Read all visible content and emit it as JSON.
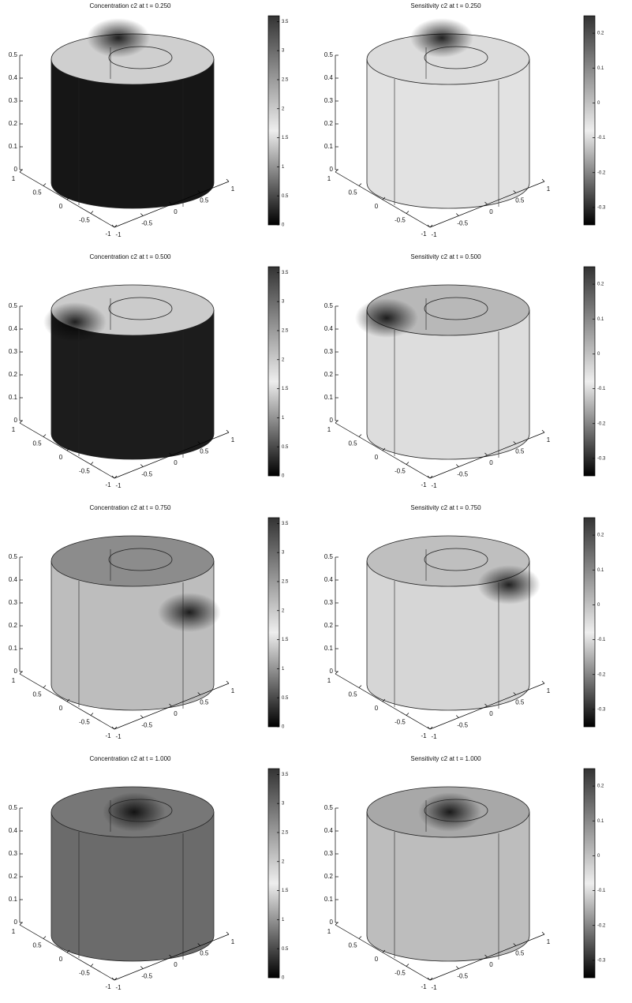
{
  "chart_data": [
    {
      "type": "surface",
      "title": "Concentration c2 at t = 0.250",
      "xlim": [
        -1,
        1
      ],
      "xticks": [
        1,
        0.5,
        0,
        -0.5,
        -1
      ],
      "ylim": [
        -1,
        1
      ],
      "yticks": [
        -1,
        -0.5,
        0,
        0.5,
        1
      ],
      "zlim": [
        0,
        0.5
      ],
      "zticks": [
        0,
        0.1,
        0.2,
        0.3,
        0.4,
        0.5
      ],
      "clim": [
        0,
        3.6
      ],
      "cticks": [
        0,
        0.5,
        1,
        1.5,
        2,
        2.5,
        3,
        3.5
      ]
    },
    {
      "type": "surface",
      "title": "Sensitivity c2 at t = 0.250",
      "xlim": [
        -1,
        1
      ],
      "xticks": [
        1,
        0.5,
        0,
        -0.5,
        -1
      ],
      "ylim": [
        -1,
        1
      ],
      "yticks": [
        -1,
        -0.5,
        0,
        0.5,
        1
      ],
      "zlim": [
        0,
        0.5
      ],
      "zticks": [
        0,
        0.1,
        0.2,
        0.3,
        0.4,
        0.5
      ],
      "clim": [
        -0.35,
        0.25
      ],
      "cticks": [
        -0.3,
        -0.2,
        -0.1,
        0,
        0.1,
        0.2
      ]
    },
    {
      "type": "surface",
      "title": "Concentration c2 at t = 0.500",
      "xlim": [
        -1,
        1
      ],
      "xticks": [
        1,
        0.5,
        0,
        -0.5,
        -1
      ],
      "ylim": [
        -1,
        1
      ],
      "yticks": [
        -1,
        -0.5,
        0,
        0.5,
        1
      ],
      "zlim": [
        0,
        0.5
      ],
      "zticks": [
        0,
        0.1,
        0.2,
        0.3,
        0.4,
        0.5
      ],
      "clim": [
        0,
        3.6
      ],
      "cticks": [
        0,
        0.5,
        1,
        1.5,
        2,
        2.5,
        3,
        3.5
      ]
    },
    {
      "type": "surface",
      "title": "Sensitivity c2 at t = 0.500",
      "xlim": [
        -1,
        1
      ],
      "xticks": [
        1,
        0.5,
        0,
        -0.5,
        -1
      ],
      "ylim": [
        -1,
        1
      ],
      "yticks": [
        -1,
        -0.5,
        0,
        0.5,
        1
      ],
      "zlim": [
        0,
        0.5
      ],
      "zticks": [
        0,
        0.1,
        0.2,
        0.3,
        0.4,
        0.5
      ],
      "clim": [
        -0.35,
        0.25
      ],
      "cticks": [
        -0.3,
        -0.2,
        -0.1,
        0,
        0.1,
        0.2
      ]
    },
    {
      "type": "surface",
      "title": "Concentration c2 at t = 0.750",
      "xlim": [
        -1,
        1
      ],
      "xticks": [
        1,
        0.5,
        0,
        -0.5,
        -1
      ],
      "ylim": [
        -1,
        1
      ],
      "yticks": [
        -1,
        -0.5,
        0,
        0.5,
        1
      ],
      "zlim": [
        0,
        0.5
      ],
      "zticks": [
        0,
        0.1,
        0.2,
        0.3,
        0.4,
        0.5
      ],
      "clim": [
        0,
        3.6
      ],
      "cticks": [
        0,
        0.5,
        1,
        1.5,
        2,
        2.5,
        3,
        3.5
      ]
    },
    {
      "type": "surface",
      "title": "Sensitivity c2 at t = 0.750",
      "xlim": [
        -1,
        1
      ],
      "xticks": [
        1,
        0.5,
        0,
        -0.5,
        -1
      ],
      "ylim": [
        -1,
        1
      ],
      "yticks": [
        -1,
        -0.5,
        0,
        0.5,
        1
      ],
      "zlim": [
        0,
        0.5
      ],
      "zticks": [
        0,
        0.1,
        0.2,
        0.3,
        0.4,
        0.5
      ],
      "clim": [
        -0.35,
        0.25
      ],
      "cticks": [
        -0.3,
        -0.2,
        -0.1,
        0,
        0.1,
        0.2
      ]
    },
    {
      "type": "surface",
      "title": "Concentration c2 at t = 1.000",
      "xlim": [
        -1,
        1
      ],
      "xticks": [
        1,
        0.5,
        0,
        -0.5,
        -1
      ],
      "ylim": [
        -1,
        1
      ],
      "yticks": [
        -1,
        -0.5,
        0,
        0.5,
        1
      ],
      "zlim": [
        0,
        0.5
      ],
      "zticks": [
        0,
        0.1,
        0.2,
        0.3,
        0.4,
        0.5
      ],
      "clim": [
        0,
        3.6
      ],
      "cticks": [
        0,
        0.5,
        1,
        1.5,
        2,
        2.5,
        3,
        3.5
      ]
    },
    {
      "type": "surface",
      "title": "Sensitivity c2 at t = 1.000",
      "xlim": [
        -1,
        1
      ],
      "xticks": [
        1,
        0.5,
        0,
        -0.5,
        -1
      ],
      "ylim": [
        -1,
        1
      ],
      "yticks": [
        -1,
        -0.5,
        0,
        0.5,
        1
      ],
      "zlim": [
        0,
        0.5
      ],
      "zticks": [
        0,
        0.1,
        0.2,
        0.3,
        0.4,
        0.5
      ],
      "clim": [
        -0.35,
        0.25
      ],
      "cticks": [
        -0.3,
        -0.2,
        -0.1,
        0,
        0.1,
        0.2
      ]
    }
  ]
}
